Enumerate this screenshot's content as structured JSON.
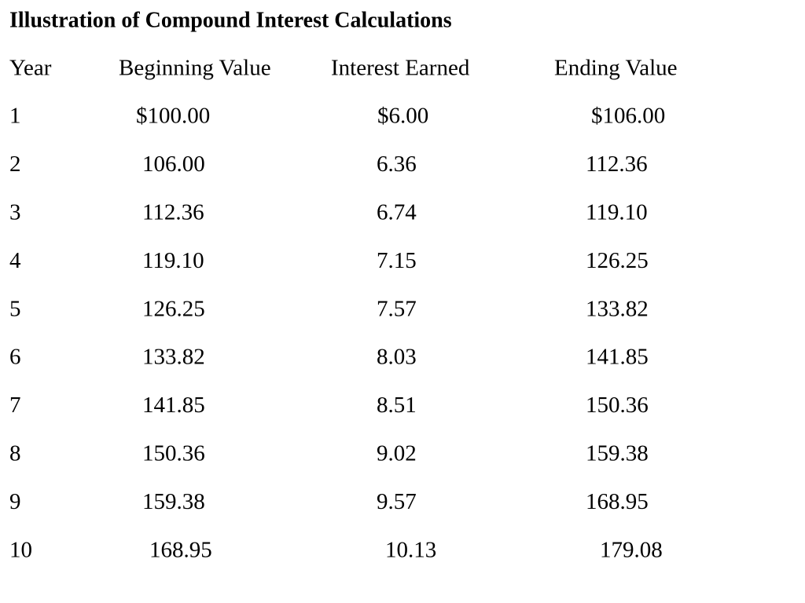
{
  "title": "Illustration of Compound Interest Calculations",
  "table": {
    "header": [
      "Year",
      "Beginning Value",
      "Interest Earned",
      "Ending Value"
    ],
    "rows": [
      [
        "1",
        "$100.00",
        "$6.00",
        "$106.00"
      ],
      [
        "2",
        "106.00",
        "6.36",
        "112.36"
      ],
      [
        "3",
        "112.36",
        "6.74",
        "119.10"
      ],
      [
        "4",
        "119.10",
        "7.15",
        "126.25"
      ],
      [
        "5",
        "126.25",
        "7.57",
        "133.82"
      ],
      [
        "6",
        "133.82",
        "8.03",
        "141.85"
      ],
      [
        "7",
        "141.85",
        "8.51",
        "150.36"
      ],
      [
        "8",
        "150.36",
        "9.02",
        "159.38"
      ],
      [
        "9",
        "159.38",
        "9.57",
        "168.95"
      ],
      [
        "10",
        "168.95",
        "10.13",
        "179.08"
      ]
    ]
  }
}
